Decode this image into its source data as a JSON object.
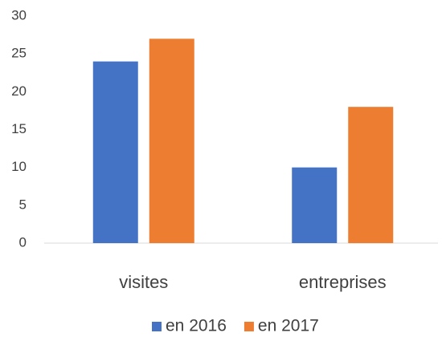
{
  "chart_data": {
    "type": "bar",
    "categories": [
      "visites",
      "entreprises"
    ],
    "series": [
      {
        "name": "en 2016",
        "color": "#4472c4",
        "values": [
          24,
          10
        ]
      },
      {
        "name": "en 2017",
        "color": "#ed7d31",
        "values": [
          27,
          18
        ]
      }
    ],
    "ylim": [
      0,
      30
    ],
    "yticks": [
      0,
      5,
      10,
      15,
      20,
      25,
      30
    ],
    "grid": false,
    "legend": "bottom"
  }
}
